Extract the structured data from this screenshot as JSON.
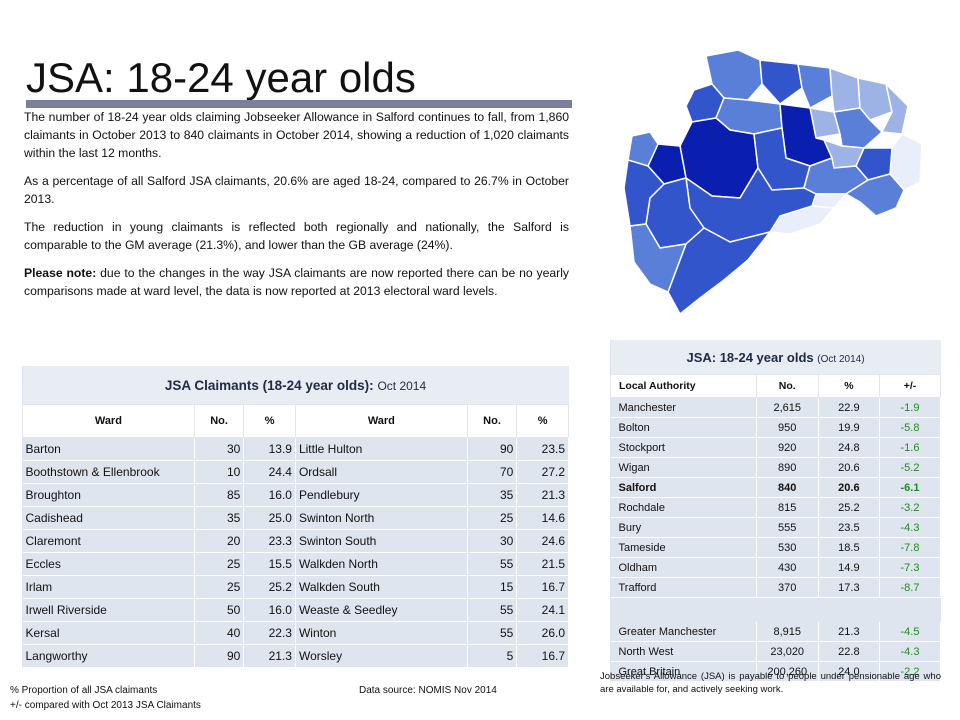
{
  "title": "JSA: 18-24 year olds",
  "intro": {
    "p1": "The number of 18-24 year olds claiming Jobseeker Allowance in Salford continues to fall, from 1,860 claimants in October 2013 to 840 claimants in October 2014, showing a reduction of 1,020 claimants within the last 12 months.",
    "p2": "As a percentage of all Salford JSA claimants, 20.6% are aged 18-24, compared to 26.7% in October 2013.",
    "p3": "The reduction in young claimants is reflected both regionally and nationally, the Salford is comparable to the GM average (21.3%), and lower than the GB average (24%).",
    "p4_bold": "Please note:",
    "p4_text": " due to the changes in the way JSA claimants are now reported there can be no yearly comparisons made at ward level, the data is now reported at 2013 electoral ward levels."
  },
  "ward_table": {
    "title": "JSA Claimants (18-24 year olds):",
    "period": "Oct 2014",
    "headers": [
      "Ward",
      "No.",
      "%",
      "Ward",
      "No.",
      "%"
    ],
    "rows": [
      [
        "Barton",
        "30",
        "13.9",
        "Little Hulton",
        "90",
        "23.5"
      ],
      [
        "Boothstown  & Ellenbrook",
        "10",
        "24.4",
        "Ordsall",
        "70",
        "27.2"
      ],
      [
        "Broughton",
        "85",
        "16.0",
        "Pendlebury",
        "35",
        "21.3"
      ],
      [
        "Cadishead",
        "35",
        "25.0",
        "Swinton North",
        "25",
        "14.6"
      ],
      [
        "Claremont",
        "20",
        "23.3",
        "Swinton South",
        "30",
        "24.6"
      ],
      [
        "Eccles",
        "25",
        "15.5",
        "Walkden North",
        "55",
        "21.5"
      ],
      [
        "Irlam",
        "25",
        "25.2",
        "Walkden South",
        "15",
        "16.7"
      ],
      [
        "Irwell Riverside",
        "50",
        "16.0",
        "Weaste & Seedley",
        "55",
        "24.1"
      ],
      [
        "Kersal",
        "40",
        "22.3",
        "Winton",
        "55",
        "26.0"
      ],
      [
        "Langworthy",
        "90",
        "21.3",
        "Worsley",
        "5",
        "16.7"
      ]
    ]
  },
  "la_table": {
    "title": "JSA: 18-24 year olds",
    "period": "(Oct 2014)",
    "headers": [
      "Local Authority",
      "No.",
      "%",
      "+/-"
    ],
    "rows": [
      [
        "Manchester",
        "2,615",
        "22.9",
        "-1.9"
      ],
      [
        "Bolton",
        "950",
        "19.9",
        "-5.8"
      ],
      [
        "Stockport",
        "920",
        "24.8",
        "-1.6"
      ],
      [
        "Wigan",
        "890",
        "20.6",
        "-5.2"
      ],
      [
        "Salford",
        "840",
        "20.6",
        "-6.1"
      ],
      [
        "Rochdale",
        "815",
        "25.2",
        "-3.2"
      ],
      [
        "Bury",
        "555",
        "23.5",
        "-4.3"
      ],
      [
        "Tameside",
        "530",
        "18.5",
        "-7.8"
      ],
      [
        "Oldham",
        "430",
        "14.9",
        "-7.3"
      ],
      [
        "Trafford",
        "370",
        "17.3",
        "-8.7"
      ]
    ],
    "totals": [
      [
        "Greater Manchester",
        "8,915",
        "21.3",
        "-4.5"
      ],
      [
        "North West",
        "23,020",
        "22.8",
        "-4.3"
      ],
      [
        "Great Britain",
        "200,260",
        "24.0",
        "-2.2"
      ]
    ]
  },
  "notes": {
    "pct": "% Proportion of all JSA claimants",
    "change": "+/- compared with  Oct 2013 JSA Claimants",
    "source": "Data source: NOMIS  Nov 2014",
    "jsa_def": "Jobseeker's Allowance (JSA) is payable to people under pensionable age who are available for, and actively seeking work."
  },
  "colors": {
    "dark": "#0a1fb0",
    "mid": "#3355cc",
    "light": "#5a7fd8",
    "pale": "#9db3e6",
    "faint": "#e8eefa",
    "negative": "#1a8f1a"
  }
}
